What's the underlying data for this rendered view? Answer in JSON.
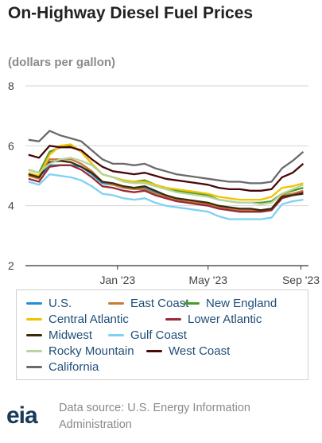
{
  "title": "On-Highway Diesel Fuel Prices",
  "subtitle": "(dollars per gallon)",
  "source": "Data source: U.S. Energy Information Administration",
  "logo_text": "eia",
  "chart_data": {
    "type": "line",
    "title": "On-Highway Diesel Fuel Prices",
    "ylabel": "(dollars per gallon)",
    "ylim": [
      2,
      8
    ],
    "yticks": [
      2,
      4,
      6,
      8
    ],
    "xlim": [
      "2022-09-01",
      "2023-09-11"
    ],
    "xticks": [
      {
        "date": "2023-01-01",
        "label": "Jan '23"
      },
      {
        "date": "2023-05-01",
        "label": "May '23"
      },
      {
        "date": "2023-09-01",
        "label": "Sep '23"
      }
    ],
    "grid": "horizontal",
    "legend_position": "bottom",
    "x": [
      "2022-09-05",
      "2022-09-19",
      "2022-10-03",
      "2022-10-17",
      "2022-10-31",
      "2022-11-14",
      "2022-11-28",
      "2022-12-12",
      "2022-12-26",
      "2023-01-09",
      "2023-01-23",
      "2023-02-06",
      "2023-02-20",
      "2023-03-06",
      "2023-03-20",
      "2023-04-03",
      "2023-04-17",
      "2023-05-01",
      "2023-05-15",
      "2023-05-29",
      "2023-06-12",
      "2023-06-26",
      "2023-07-10",
      "2023-07-24",
      "2023-08-07",
      "2023-08-21",
      "2023-09-04"
    ],
    "series": [
      {
        "name": "U.S.",
        "color": "#1f8fd8",
        "values": [
          5.05,
          4.95,
          5.35,
          5.35,
          5.35,
          5.3,
          5.05,
          4.75,
          4.7,
          4.6,
          4.55,
          4.6,
          4.45,
          4.3,
          4.2,
          4.15,
          4.1,
          4.05,
          3.95,
          3.9,
          3.8,
          3.8,
          3.8,
          3.85,
          4.3,
          4.4,
          4.45
        ]
      },
      {
        "name": "East Coast",
        "color": "#c77a3a",
        "values": [
          5.0,
          4.9,
          5.55,
          5.55,
          5.55,
          5.4,
          5.15,
          4.8,
          4.7,
          4.6,
          4.55,
          4.55,
          4.4,
          4.3,
          4.2,
          4.15,
          4.1,
          4.05,
          3.95,
          3.9,
          3.85,
          3.85,
          3.85,
          3.9,
          4.35,
          4.4,
          4.5
        ]
      },
      {
        "name": "New England",
        "color": "#4a9a2a",
        "values": [
          5.2,
          5.1,
          5.8,
          5.95,
          6.0,
          5.8,
          5.4,
          5.05,
          4.95,
          4.85,
          4.8,
          4.85,
          4.7,
          4.6,
          4.5,
          4.45,
          4.4,
          4.35,
          4.2,
          4.15,
          4.1,
          4.1,
          4.1,
          4.15,
          4.4,
          4.5,
          4.6
        ]
      },
      {
        "name": "Central Atlantic",
        "color": "#f0c400",
        "values": [
          5.1,
          5.0,
          5.7,
          6.0,
          6.05,
          5.8,
          5.4,
          5.05,
          4.95,
          4.85,
          4.8,
          4.8,
          4.7,
          4.6,
          4.55,
          4.5,
          4.45,
          4.4,
          4.3,
          4.25,
          4.2,
          4.2,
          4.2,
          4.3,
          4.6,
          4.65,
          4.75
        ]
      },
      {
        "name": "Lower Atlantic",
        "color": "#9a2a3a",
        "values": [
          4.9,
          4.8,
          5.3,
          5.35,
          5.35,
          5.2,
          4.95,
          4.65,
          4.6,
          4.5,
          4.45,
          4.5,
          4.35,
          4.25,
          4.15,
          4.1,
          4.05,
          4.0,
          3.9,
          3.85,
          3.8,
          3.8,
          3.8,
          3.85,
          4.25,
          4.35,
          4.45
        ]
      },
      {
        "name": "Midwest",
        "color": "#3a2a0a",
        "values": [
          5.05,
          4.95,
          5.45,
          5.5,
          5.45,
          5.3,
          5.1,
          4.8,
          4.75,
          4.65,
          4.6,
          4.65,
          4.5,
          4.35,
          4.25,
          4.2,
          4.15,
          4.1,
          4.0,
          3.95,
          3.9,
          3.9,
          3.85,
          3.9,
          4.3,
          4.35,
          4.4
        ]
      },
      {
        "name": "Gulf Coast",
        "color": "#7fd0f5",
        "values": [
          4.8,
          4.7,
          5.05,
          5.0,
          4.95,
          4.85,
          4.65,
          4.4,
          4.35,
          4.25,
          4.2,
          4.25,
          4.1,
          4.0,
          3.95,
          3.9,
          3.85,
          3.8,
          3.65,
          3.55,
          3.55,
          3.55,
          3.55,
          3.6,
          4.05,
          4.15,
          4.2
        ]
      },
      {
        "name": "Rocky Mountain",
        "color": "#b8d4a0",
        "values": [
          5.2,
          5.1,
          5.4,
          5.55,
          5.6,
          5.5,
          5.35,
          5.05,
          4.95,
          4.8,
          4.75,
          4.75,
          4.65,
          4.55,
          4.45,
          4.4,
          4.35,
          4.3,
          4.2,
          4.15,
          4.1,
          4.1,
          4.05,
          4.1,
          4.4,
          4.55,
          4.7
        ]
      },
      {
        "name": "West Coast",
        "color": "#4a0808",
        "values": [
          5.7,
          5.6,
          6.0,
          5.95,
          5.95,
          5.85,
          5.55,
          5.3,
          5.15,
          5.1,
          5.05,
          5.1,
          5.0,
          4.9,
          4.85,
          4.8,
          4.75,
          4.7,
          4.6,
          4.55,
          4.55,
          4.5,
          4.5,
          4.55,
          4.95,
          5.1,
          5.4
        ]
      },
      {
        "name": "California",
        "color": "#6a6a6a",
        "values": [
          6.2,
          6.15,
          6.5,
          6.35,
          6.25,
          6.15,
          5.85,
          5.55,
          5.4,
          5.4,
          5.35,
          5.4,
          5.25,
          5.15,
          5.05,
          5.0,
          4.95,
          4.9,
          4.85,
          4.8,
          4.8,
          4.75,
          4.75,
          4.8,
          5.25,
          5.5,
          5.8
        ]
      }
    ]
  }
}
